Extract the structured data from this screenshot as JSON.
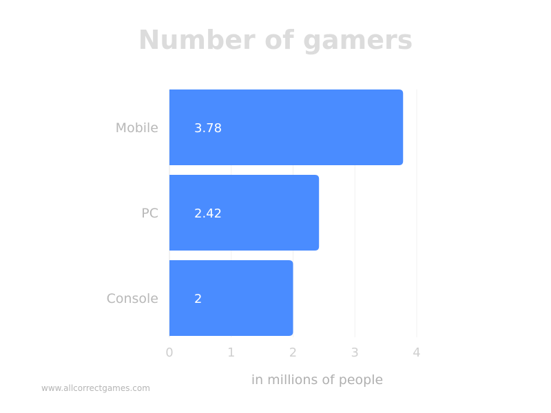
{
  "chart_data": {
    "type": "bar",
    "orientation": "horizontal",
    "title": "Number of gamers",
    "categories": [
      "Mobile",
      "PC",
      "Console"
    ],
    "values": [
      3.78,
      2.42,
      2
    ],
    "data_labels": [
      "3.78",
      "2.42",
      "2"
    ],
    "xlabel": "in millions of people",
    "ylabel": "",
    "xlim": [
      0,
      4
    ],
    "xticks": [
      "0",
      "1",
      "2",
      "3",
      "4"
    ],
    "grid": true,
    "bar_color": "#4a8cff"
  },
  "watermark": "www.allcorrectgames.com"
}
